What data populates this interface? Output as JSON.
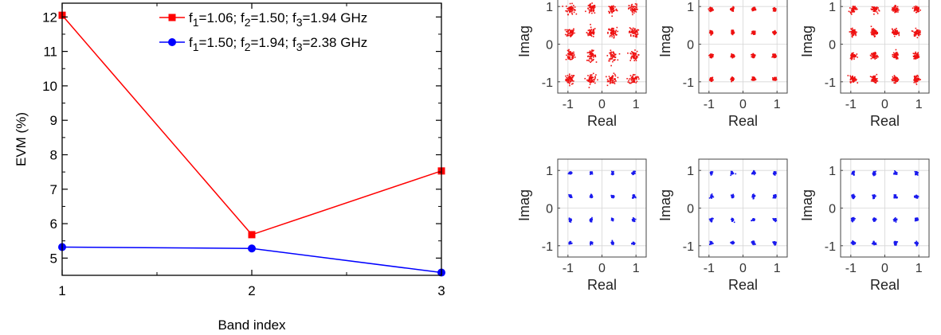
{
  "chart_data": [
    {
      "type": "line",
      "xlabel": "Band index",
      "ylabel": "EVM (%)",
      "x": [
        1,
        2,
        3
      ],
      "xticks": [
        "1",
        "2",
        "3"
      ],
      "xlim": [
        1,
        3
      ],
      "ylim": [
        4.5,
        12.4
      ],
      "yticks": [
        "5",
        "6",
        "7",
        "8",
        "9",
        "10",
        "11",
        "12"
      ],
      "grid": false,
      "legend_position": "top-right",
      "series": [
        {
          "name": "f1=1.06; f2=1.50; f3=1.94 GHz",
          "legend": {
            "p1": "f",
            "s1": "1",
            "p2": "=1.06; f",
            "s2": "2",
            "p3": "=1.50; f",
            "s3": "3",
            "p4": "=1.94 GHz"
          },
          "values": [
            12.05,
            5.68,
            7.53
          ],
          "color": "#ff0000",
          "marker": "square"
        },
        {
          "name": "f1=1.50; f2=1.94; f3=2.38 GHz",
          "legend": {
            "p1": "f",
            "s1": "1",
            "p2": "=1.50; f",
            "s2": "2",
            "p3": "=1.94; f",
            "s3": "3",
            "p4": "=2.38 GHz"
          },
          "values": [
            5.32,
            5.28,
            4.58
          ],
          "color": "#0000ff",
          "marker": "circle"
        }
      ]
    },
    {
      "type": "scatter",
      "subtype": "constellation-grid",
      "rows": 2,
      "cols": 3,
      "xlabel": "Real",
      "ylabel": "Imag",
      "xlim": [
        -1.3,
        1.3
      ],
      "ylim": [
        -1.3,
        1.3
      ],
      "xticks": [
        "-1",
        "0",
        "1"
      ],
      "yticks": [
        "1",
        "0",
        "-1"
      ],
      "grid": true,
      "ideal_levels": [
        -0.93,
        -0.31,
        0.31,
        0.93
      ],
      "row_colors": [
        "#ee1111",
        "#1a1aee"
      ],
      "panels": [
        {
          "row": 0,
          "col": 0,
          "spread": 0.065
        },
        {
          "row": 0,
          "col": 1,
          "spread": 0.022
        },
        {
          "row": 0,
          "col": 2,
          "spread": 0.045
        },
        {
          "row": 1,
          "col": 0,
          "spread": 0.02
        },
        {
          "row": 1,
          "col": 1,
          "spread": 0.022
        },
        {
          "row": 1,
          "col": 2,
          "spread": 0.024
        }
      ]
    }
  ]
}
